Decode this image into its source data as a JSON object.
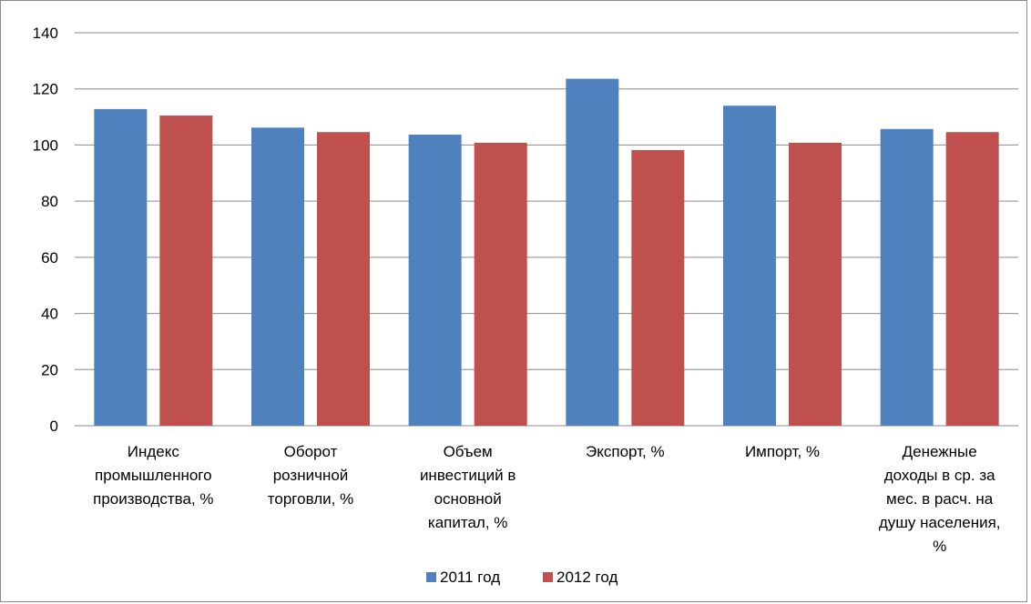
{
  "chart_data": {
    "type": "bar",
    "categories": [
      [
        "Индекс",
        "промышленного",
        "производства, %"
      ],
      [
        "Оборот",
        "розничной",
        "торговли, %"
      ],
      [
        "Объем",
        "инвестиций в",
        "основной",
        "капитал, %"
      ],
      [
        "Экспорт, %"
      ],
      [
        "Импорт, %"
      ],
      [
        "Денежные",
        "доходы в ср. за",
        "мес. в расч. на",
        "душу населения,",
        "%"
      ]
    ],
    "series": [
      {
        "name": "2011 год",
        "color": "#4f81bd",
        "values": [
          112.8,
          106.2,
          103.7,
          123.6,
          114.0,
          105.7
        ]
      },
      {
        "name": "2012 год",
        "color": "#c0504d",
        "values": [
          110.5,
          104.6,
          100.8,
          98.2,
          100.8,
          104.6
        ]
      }
    ],
    "yticks": [
      0,
      20,
      40,
      60,
      80,
      100,
      120,
      140
    ],
    "ylim": [
      0,
      140
    ],
    "grid": true,
    "legend": "bottom"
  }
}
